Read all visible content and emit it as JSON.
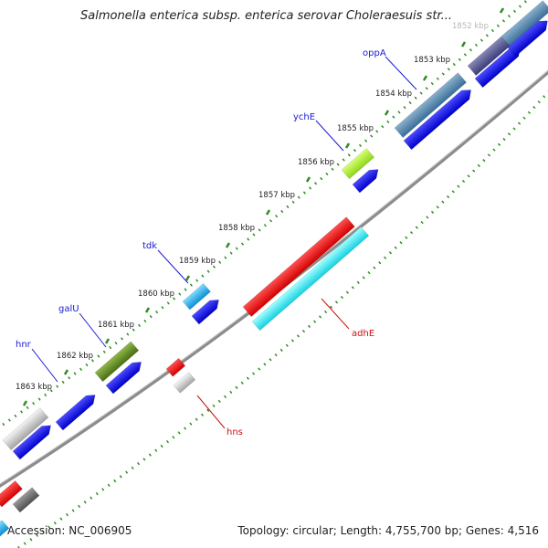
{
  "title": "Salmonella enterica subsp. enterica serovar Choleraesuis str...",
  "footer": {
    "accession": "Accession: NC_006905",
    "summary": "Topology: circular; Length: 4,755,700 bp; Genes: 4,516"
  },
  "colors": {
    "backbone": "#8c8c8c",
    "tick": "#2e8b22",
    "gene_label_blue": "#1a1ad6",
    "gene_label_red": "#cc1111",
    "cds_strand": "#1212d8"
  },
  "kbp_ticks": [
    {
      "label": "1852 kbp",
      "faded": true
    },
    {
      "label": "1853 kbp"
    },
    {
      "label": "1854 kbp"
    },
    {
      "label": "1855 kbp"
    },
    {
      "label": "1856 kbp"
    },
    {
      "label": "1857 kbp"
    },
    {
      "label": "1858 kbp"
    },
    {
      "label": "1859 kbp"
    },
    {
      "label": "1860 kbp"
    },
    {
      "label": "1861 kbp"
    },
    {
      "label": "1862 kbp"
    },
    {
      "label": "1863 kbp"
    }
  ],
  "gene_labels": [
    {
      "name": "oppA",
      "color": "#1a1ad6"
    },
    {
      "name": "ychE",
      "color": "#1a1ad6"
    },
    {
      "name": "tdk",
      "color": "#1a1ad6"
    },
    {
      "name": "galU",
      "color": "#1a1ad6"
    },
    {
      "name": "hnr",
      "color": "#1a1ad6"
    },
    {
      "name": "adhE",
      "color": "#cc1111"
    },
    {
      "name": "hns",
      "color": "#cc1111"
    }
  ]
}
